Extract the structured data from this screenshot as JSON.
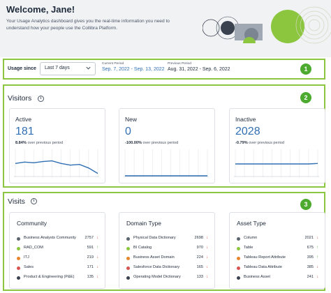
{
  "header": {
    "title": "Welcome, Jane!",
    "intro": "Your Usage Analytics dashboard gives you the real-time information you need to understand how your people use the Collibra Platform."
  },
  "usage": {
    "badge": "1",
    "label": "Usage since",
    "select_value": "Last 7 days",
    "current_caption": "Current Period",
    "current_value": "Sep. 7, 2022 - Sep. 13, 2022",
    "previous_caption": "Previous Period",
    "previous_value": "Aug. 31, 2022 - Sep. 6, 2022"
  },
  "visitors": {
    "badge": "2",
    "title": "Visitors",
    "cards": [
      {
        "title": "Active",
        "value": "181",
        "change": "8.84%",
        "suffix": "over previous period",
        "trend": [
          0.52,
          0.58,
          0.55,
          0.6,
          0.63,
          0.52,
          0.45,
          0.48,
          0.33,
          0.1
        ]
      },
      {
        "title": "New",
        "value": "0",
        "change": "-100.00%",
        "suffix": "over previous period",
        "trend": [
          0,
          0,
          0,
          0,
          0,
          0,
          0,
          0,
          0,
          0
        ]
      },
      {
        "title": "Inactive",
        "value": "2028",
        "change": "-0.79%",
        "suffix": "over previous period",
        "trend": [
          0.5,
          0.5,
          0.5,
          0.5,
          0.5,
          0.5,
          0.5,
          0.5,
          0.5,
          0.52
        ]
      }
    ]
  },
  "visits": {
    "badge": "3",
    "title": "Visits",
    "lists": [
      {
        "title": "Community",
        "items": [
          {
            "label": "Business Analysts Community",
            "count": "2757",
            "trend": "down",
            "color": "#5b6570"
          },
          {
            "label": "RAD_COM",
            "count": "591",
            "trend": "up",
            "color": "#8cc63f"
          },
          {
            "label": "ITJ",
            "count": "219",
            "trend": "down",
            "color": "#e8862b"
          },
          {
            "label": "Sales",
            "count": "171",
            "trend": "down",
            "color": "#d9534f"
          },
          {
            "label": "Product & Engineering (P&E)",
            "count": "135",
            "trend": "down",
            "color": "#3a4250"
          }
        ]
      },
      {
        "title": "Domain Type",
        "items": [
          {
            "label": "Physical Data Dictionary",
            "count": "2698",
            "trend": "down",
            "color": "#5b6570"
          },
          {
            "label": "BI Catalog",
            "count": "970",
            "trend": "down",
            "color": "#8cc63f"
          },
          {
            "label": "Business Asset Domain",
            "count": "224",
            "trend": "down",
            "color": "#e8862b"
          },
          {
            "label": "Salesforce Data Dictionary",
            "count": "165",
            "trend": "down",
            "color": "#d9534f"
          },
          {
            "label": "Operating Model Dictionary",
            "count": "133",
            "trend": "down",
            "color": "#3a4250"
          }
        ]
      },
      {
        "title": "Asset Type",
        "items": [
          {
            "label": "Column",
            "count": "2021",
            "trend": "down",
            "color": "#5b6570"
          },
          {
            "label": "Table",
            "count": "675",
            "trend": "up",
            "color": "#8cc63f"
          },
          {
            "label": "Tableau Report Attribute",
            "count": "395",
            "trend": "up",
            "color": "#e8862b"
          },
          {
            "label": "Tableau Data Attribute",
            "count": "385",
            "trend": "down",
            "color": "#d9534f"
          },
          {
            "label": "Business Asset",
            "count": "241",
            "trend": "down",
            "color": "#3a4250"
          }
        ]
      }
    ]
  }
}
